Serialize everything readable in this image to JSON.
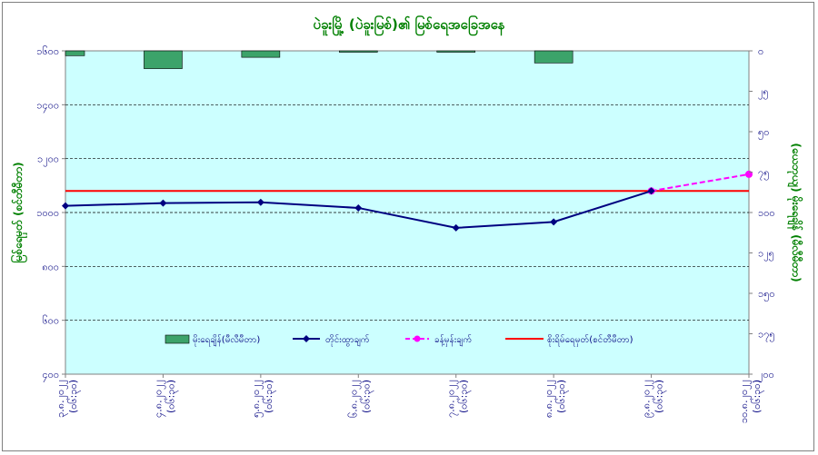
{
  "chart_data": {
    "type": "bar+line",
    "title": "ပဲခူးမြို့ (ပဲခူးမြစ်)၏ မြစ်ရေအခြေအနေ",
    "ylabel_left": "မြစ်ရေမှတ် (စင်တီမီတာ)",
    "ylabel_right": "(ယေဘုယျ) မိုးရေချိန် (မီလီမီတာ)",
    "left_axis": {
      "min": 400,
      "max": 1600,
      "ticks": [
        "၄၀၀",
        "၆၀၀",
        "၈၀၀",
        "၁၀၀၀",
        "၁၂၀၀",
        "၁၄၀၀",
        "၁၆၀၀"
      ],
      "tick_values": [
        400,
        600,
        800,
        1000,
        1200,
        1400,
        1600
      ]
    },
    "right_axis": {
      "min": 0,
      "max": 200,
      "reversed": true,
      "ticks": [
        "၀",
        "၂၅",
        "၅၀",
        "၇၅",
        "၁၀၀",
        "၁၂၅",
        "၁၅၀",
        "၁၇၅",
        "၂၀၀"
      ],
      "tick_values": [
        0,
        25,
        50,
        75,
        100,
        125,
        150,
        175,
        200
      ]
    },
    "categories": [
      {
        "date": "၃.၈.၂၀၂၂",
        "time": "(၀၆:၃၀)"
      },
      {
        "date": "၄.၈.၂၀၂၂",
        "time": "(၀၆:၃၀)"
      },
      {
        "date": "၅.၈.၂၀၂၂",
        "time": "(၀၆:၃၀)"
      },
      {
        "date": "၆.၈.၂၀၂၂",
        "time": "(၀၆:၃၀)"
      },
      {
        "date": "၇.၈.၂၀၂၂",
        "time": "(၀၆:၃၀)"
      },
      {
        "date": "၈.၈.၂၀၂၂",
        "time": "(၀၆:၃၀)"
      },
      {
        "date": "၉.၈.၂၀၂၂",
        "time": "(၀၆:၃၀)"
      },
      {
        "date": "၁၀.၈.၂၀၂၂",
        "time": "(၀၆:၃၀)"
      }
    ],
    "rainfall": {
      "name": "မိုးရေချိန်(မီလီမီတာ)",
      "values": [
        3,
        11,
        4,
        0.5,
        0.5,
        7.5
      ],
      "color": "#3ca36a"
    },
    "observed": {
      "name": "တိုင်းထွာချက်",
      "values": [
        1025,
        1035,
        1038,
        1017,
        943,
        965,
        1080
      ],
      "color": "#000080"
    },
    "forecast": {
      "name": "ခန့်မှန်းချက်",
      "start_index": 6,
      "values": [
        1080,
        1142
      ],
      "color": "#ff00ff"
    },
    "danger_level": {
      "name": "စိုးရိမ်ရေမှတ်(စင်တီမီတာ)",
      "value": 1080,
      "color": "#ff0000"
    },
    "grid": true,
    "legend_position": "bottom-inside"
  }
}
